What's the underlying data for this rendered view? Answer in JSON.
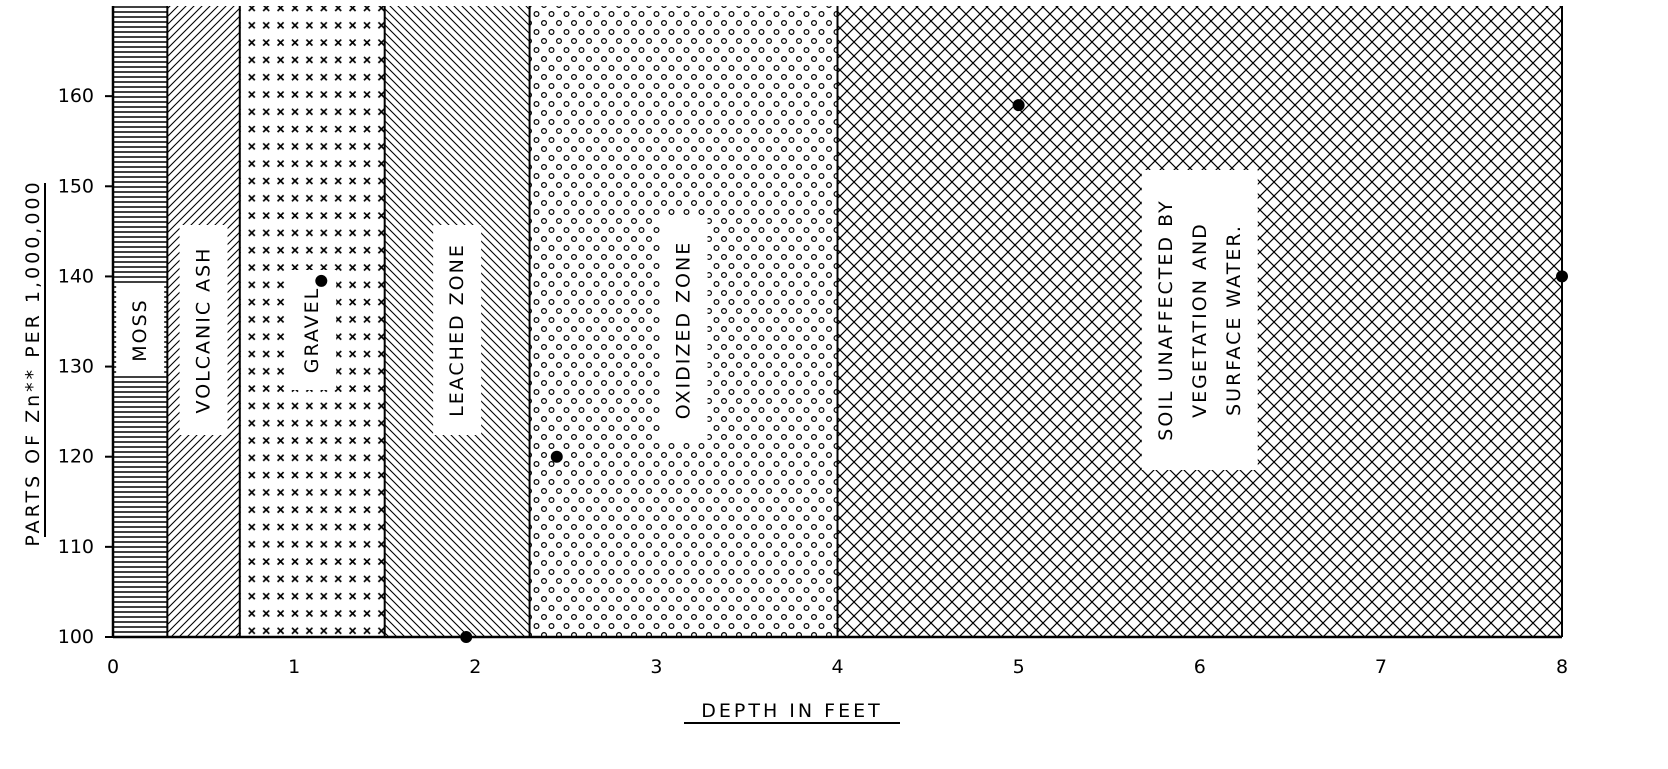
{
  "chart_data": {
    "type": "scatter",
    "title": "",
    "xlabel": "DEPTH IN FEET",
    "ylabel": "PARTS OF Zn** PER 1,000,000",
    "xlim": [
      0,
      8
    ],
    "ylim": [
      100,
      170
    ],
    "xticks": [
      0,
      1,
      2,
      3,
      4,
      5,
      6,
      7,
      8
    ],
    "xtick_labels": [
      "0",
      "1",
      "2",
      "3",
      "4",
      "5",
      "6",
      "7",
      "8"
    ],
    "yticks": [
      100,
      110,
      120,
      130,
      140,
      150,
      160
    ],
    "ytick_labels": [
      "100",
      "110",
      "120",
      "130",
      "140",
      "150",
      "160"
    ],
    "grid": false,
    "zones": [
      {
        "label": "MOSS",
        "from": 0,
        "to": 0.3,
        "pattern": "horizontal-lines"
      },
      {
        "label": "VOLCANIC ASH",
        "from": 0.3,
        "to": 0.7,
        "pattern": "diagonal-forward"
      },
      {
        "label": "GRAVEL",
        "from": 0.7,
        "to": 1.5,
        "pattern": "x-marks"
      },
      {
        "label": "LEACHED ZONE",
        "from": 1.5,
        "to": 2.3,
        "pattern": "diagonal-back"
      },
      {
        "label": "OXIDIZED ZONE",
        "from": 2.3,
        "to": 4.0,
        "pattern": "circles"
      },
      {
        "label_lines": [
          "SOIL UNAFFECTED BY",
          "VEGETATION AND",
          "SURFACE WATER."
        ],
        "from": 4.0,
        "to": 8.0,
        "pattern": "crosshatch"
      }
    ],
    "points": [
      {
        "x": 1.15,
        "y": 139.5
      },
      {
        "x": 1.95,
        "y": 100
      },
      {
        "x": 2.45,
        "y": 120
      },
      {
        "x": 5.0,
        "y": 159
      },
      {
        "x": 8.0,
        "y": 140
      }
    ]
  }
}
